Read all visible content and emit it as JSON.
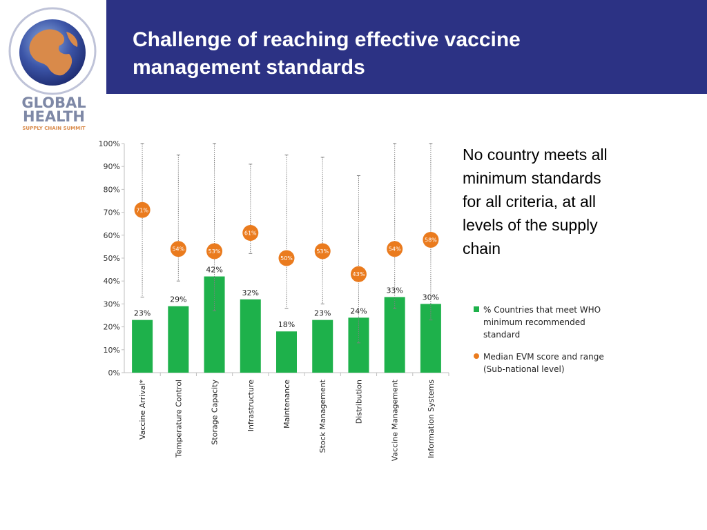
{
  "header": {
    "title_lines": [
      "Challenge of reaching effective vaccine",
      "management standards"
    ]
  },
  "logo": {
    "line1": "GLOBAL",
    "line2": "HEALTH",
    "line3": "SUPPLY CHAIN SUMMIT"
  },
  "side_note_lines": [
    "No country meets all",
    "minimum standards",
    "for all criteria, at all",
    "levels of the supply",
    "chain"
  ],
  "colors": {
    "header": "#2c3284",
    "bar": "#1eb14b",
    "median": "#ea7b1e",
    "range": "#7f7f7f"
  },
  "chart_data": {
    "type": "bar",
    "categories": [
      "Vaccine Arrival*",
      "Temperature Control",
      "Storage Capacity",
      "Infrastructure",
      "Maintenance",
      "Stock Management",
      "Distribution",
      "Vaccine Management",
      "Information Systems"
    ],
    "series": [
      {
        "name": "% Countries that meet WHO minimum recommended standard",
        "type": "bar",
        "values": [
          23,
          29,
          42,
          32,
          18,
          23,
          24,
          33,
          30
        ],
        "labels": [
          "23%",
          "29%",
          "42%",
          "32%",
          "18%",
          "23%",
          "24%",
          "33%",
          "30%"
        ]
      },
      {
        "name": "Median EVM score and range (Sub-national level)",
        "type": "scatter",
        "values": [
          71,
          54,
          53,
          61,
          50,
          53,
          43,
          54,
          58
        ],
        "labels": [
          "71%",
          "54%",
          "53%",
          "61%",
          "50%",
          "53%",
          "43%",
          "54%",
          "58%"
        ],
        "range_low": [
          33,
          40,
          27,
          52,
          28,
          30,
          13,
          28,
          23
        ],
        "range_high": [
          100,
          95,
          100,
          91,
          95,
          94,
          86,
          100,
          100
        ]
      }
    ],
    "y_ticks": [
      "0%",
      "10%",
      "20%",
      "30%",
      "40%",
      "50%",
      "60%",
      "70%",
      "80%",
      "90%",
      "100%"
    ],
    "ylim": [
      0,
      100
    ],
    "grid": false,
    "legend": {
      "position": "right",
      "items": [
        {
          "label_lines": [
            "% Countries that meet WHO",
            "minimum recommended",
            "standard"
          ]
        },
        {
          "label_lines": [
            "Median EVM score and range",
            "(Sub-national level)"
          ]
        }
      ]
    }
  }
}
